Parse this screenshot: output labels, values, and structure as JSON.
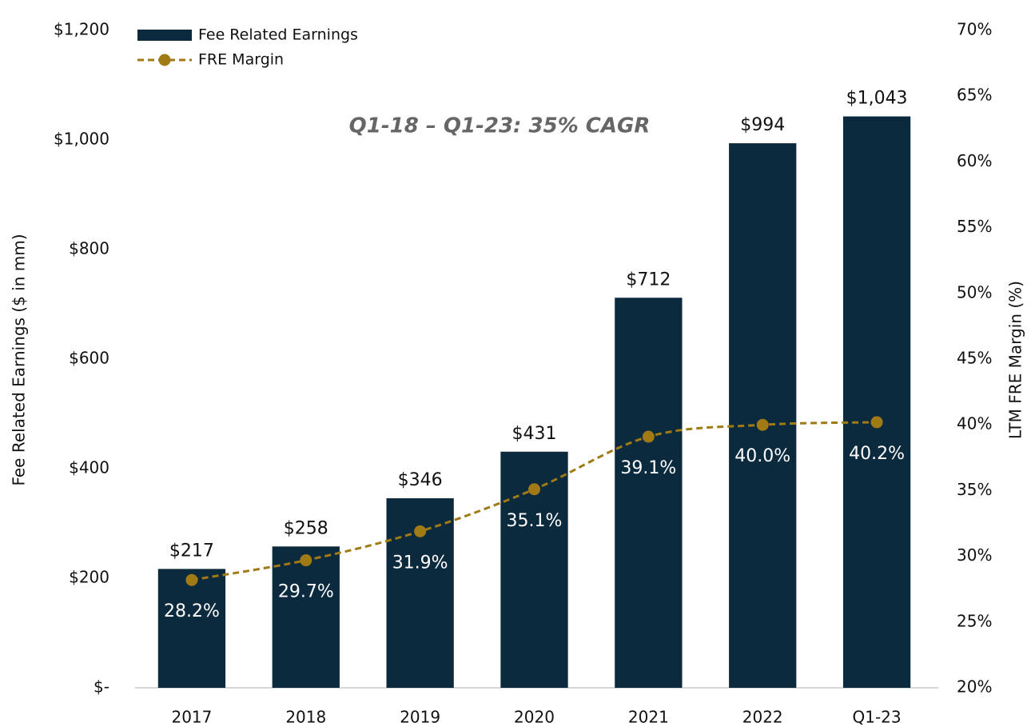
{
  "chart_data": {
    "type": "bar",
    "annotation": "Q1-18 – Q1-23: 35% CAGR",
    "ylabel": "Fee Related Earnings ($ in mm)",
    "y2label": "LTM FRE Margin (%)",
    "categories": [
      "2017",
      "2018",
      "2019",
      "2020",
      "2021",
      "2022",
      "Q1-23"
    ],
    "series": [
      {
        "name": "Fee Related Earnings",
        "type": "bar",
        "color": "#0c2a3e",
        "values": [
          217,
          258,
          346,
          431,
          712,
          994,
          1043
        ],
        "value_labels": [
          "$217",
          "$258",
          "$346",
          "$431",
          "$712",
          "$994",
          "$1,043"
        ]
      },
      {
        "name": "FRE Margin",
        "type": "line",
        "axis": "y2",
        "color": "#a07a14",
        "values": [
          28.2,
          29.7,
          31.9,
          35.1,
          39.1,
          40.0,
          40.2
        ],
        "value_labels": [
          "28.2%",
          "29.7%",
          "31.9%",
          "35.1%",
          "39.1%",
          "40.0%",
          "40.2%"
        ]
      }
    ],
    "ylim": [
      0,
      1200
    ],
    "yticks": [
      {
        "value": 0,
        "label": "$-"
      },
      {
        "value": 200,
        "label": "$200"
      },
      {
        "value": 400,
        "label": "$400"
      },
      {
        "value": 600,
        "label": "$600"
      },
      {
        "value": 800,
        "label": "$800"
      },
      {
        "value": 1000,
        "label": "$1,000"
      },
      {
        "value": 1200,
        "label": "$1,200"
      }
    ],
    "y2lim": [
      20,
      70
    ],
    "y2ticks": [
      {
        "value": 20,
        "label": "20%"
      },
      {
        "value": 25,
        "label": "25%"
      },
      {
        "value": 30,
        "label": "30%"
      },
      {
        "value": 35,
        "label": "35%"
      },
      {
        "value": 40,
        "label": "40%"
      },
      {
        "value": 45,
        "label": "45%"
      },
      {
        "value": 50,
        "label": "50%"
      },
      {
        "value": 55,
        "label": "55%"
      },
      {
        "value": 60,
        "label": "60%"
      },
      {
        "value": 65,
        "label": "65%"
      },
      {
        "value": 70,
        "label": "70%"
      }
    ],
    "grid": false,
    "legend": "upper left"
  }
}
